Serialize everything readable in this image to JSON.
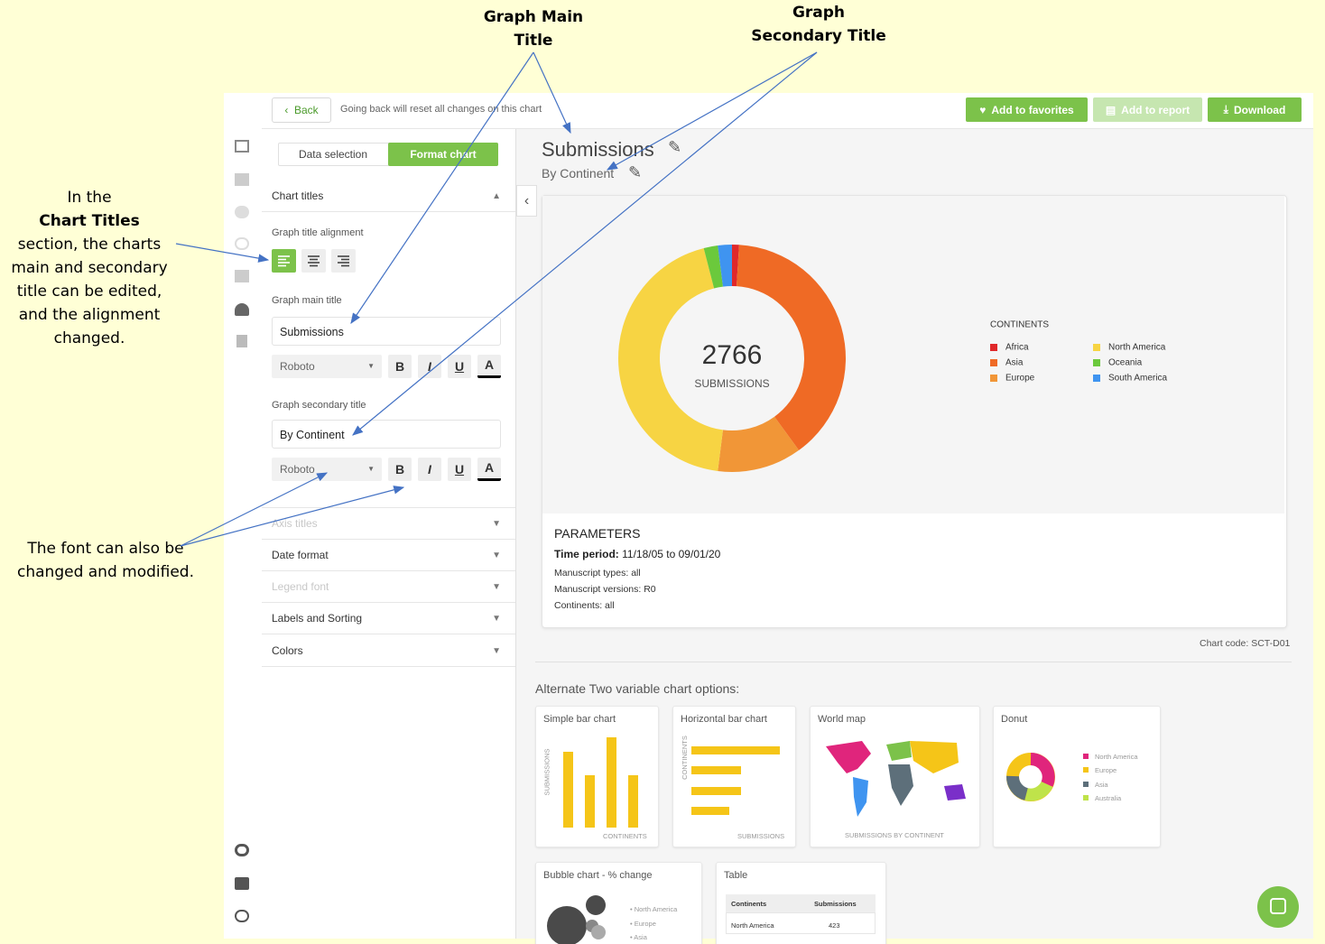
{
  "annotations": {
    "graph_main_title": [
      "Graph Main",
      "Title"
    ],
    "graph_secondary_title": [
      "Graph",
      "Secondary Title"
    ],
    "chart_titles_note": [
      "In the",
      "Chart Titles",
      "section, the charts",
      "main and secondary",
      "title can be edited,",
      "and the alignment",
      "changed."
    ],
    "font_note": [
      "The font can also be",
      "changed and modified."
    ]
  },
  "toolbar": {
    "back": "Back",
    "back_note": "Going back will reset all changes on this chart",
    "favorites": "Add to favorites",
    "report": "Add to report",
    "download": "Download"
  },
  "panel": {
    "tabs": [
      "Data selection",
      "Format chart"
    ],
    "section": "Chart titles",
    "alignment_label": "Graph title alignment",
    "main_title_label": "Graph main title",
    "main_title_value": "Submissions",
    "secondary_title_label": "Graph secondary title",
    "secondary_title_value": "By Continent",
    "font": "Roboto",
    "format_buttons": [
      "B",
      "I",
      "U",
      "A"
    ],
    "collapsed_sections": [
      "Axis titles",
      "Date format",
      "Legend font",
      "Labels and Sorting",
      "Colors"
    ]
  },
  "chart_data": {
    "type": "donut",
    "title": "Submissions",
    "subtitle": "By Continent",
    "center_value": 2766,
    "center_label": "SUBMISSIONS",
    "legend_title": "CONTINENTS",
    "categories": [
      "Africa",
      "Asia",
      "Europe",
      "North America",
      "Oceania",
      "South America"
    ],
    "values": [
      1,
      39,
      12,
      44,
      2,
      2
    ],
    "colors": [
      "#e0282a",
      "#ef6a25",
      "#f19637",
      "#f7d443",
      "#6bc93c",
      "#3f94f0"
    ]
  },
  "parameters": {
    "title": "PARAMETERS",
    "time_period_label": "Time period:",
    "time_period": "11/18/05 to 09/01/20",
    "lines": [
      "Manuscript types: all",
      "Manuscript versions: R0",
      "Continents: all"
    ]
  },
  "chart_code": "Chart code: SCT-D01",
  "alternates": {
    "heading": "Alternate Two variable chart options:",
    "cards": [
      {
        "title": "Simple bar chart",
        "labels": [
          "SUBMISSIONS",
          "CONTINENTS"
        ]
      },
      {
        "title": "Horizontal bar chart",
        "labels": [
          "CONTINENTS",
          "SUBMISSIONS"
        ]
      },
      {
        "title": "World map",
        "labels": [
          "SUBMISSIONS BY CONTINENT"
        ]
      },
      {
        "title": "Donut",
        "labels": [
          "North America",
          "Europe",
          "Asia",
          "Australia"
        ]
      },
      {
        "title": "Bubble chart - % change",
        "labels": [
          "North America",
          "Europe",
          "Asia"
        ]
      },
      {
        "title": "Table",
        "labels": [
          "Continents",
          "Submissions",
          "North America",
          423
        ]
      }
    ]
  }
}
